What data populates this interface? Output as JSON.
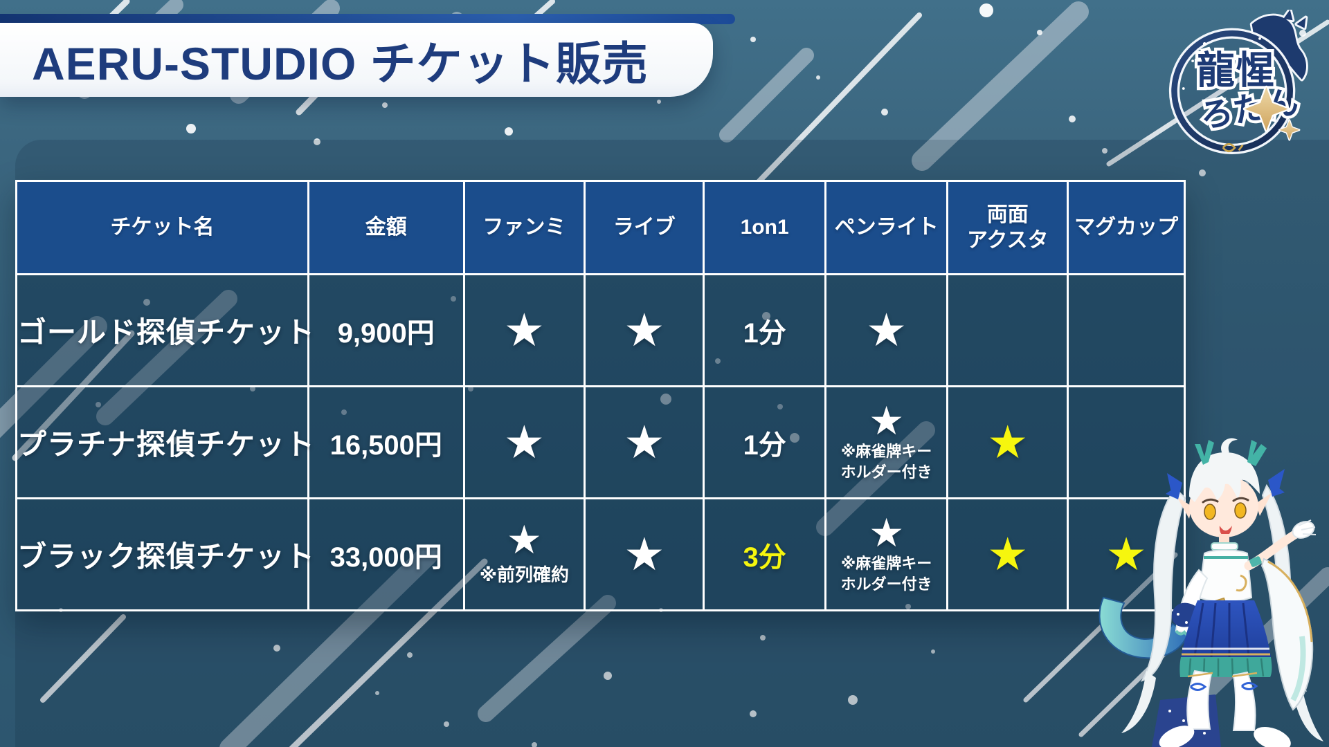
{
  "header": {
    "title": "AERU-STUDIO チケット販売"
  },
  "logo": {
    "name_kanji": "龍惺",
    "name_kana": "ろたん"
  },
  "table": {
    "columns": [
      "チケット名",
      "金額",
      "ファンミ",
      "ライブ",
      "1on1",
      "ペンライト",
      "両面\nアクスタ",
      "マグカップ"
    ],
    "star_glyph": "★",
    "rows": [
      {
        "ticket": "ゴールド探偵チケット",
        "price": "9,900円",
        "cells": [
          {
            "star": "white"
          },
          {
            "star": "white"
          },
          {
            "text": "1分"
          },
          {
            "star": "white"
          },
          {
            "empty": true
          },
          {
            "empty": true
          }
        ]
      },
      {
        "ticket": "プラチナ探偵チケット",
        "price": "16,500円",
        "cells": [
          {
            "star": "white"
          },
          {
            "star": "white"
          },
          {
            "text": "1分"
          },
          {
            "star": "white",
            "note": "※麻雀牌キー\nホルダー付き"
          },
          {
            "star": "yellow"
          },
          {
            "empty": true
          }
        ]
      },
      {
        "ticket": "ブラック探偵チケット",
        "price": "33,000円",
        "cells": [
          {
            "star": "white",
            "note": "※前列確約",
            "note_style": "lg"
          },
          {
            "star": "white"
          },
          {
            "text": "3分",
            "highlight": true
          },
          {
            "star": "white",
            "note": "※麻雀牌キー\nホルダー付き"
          },
          {
            "star": "yellow"
          },
          {
            "star": "yellow"
          }
        ]
      }
    ]
  },
  "colors": {
    "highlight_yellow": "#f6f60e",
    "header_blue": "#1b4d8c",
    "title_navy": "#1e3c7d"
  }
}
